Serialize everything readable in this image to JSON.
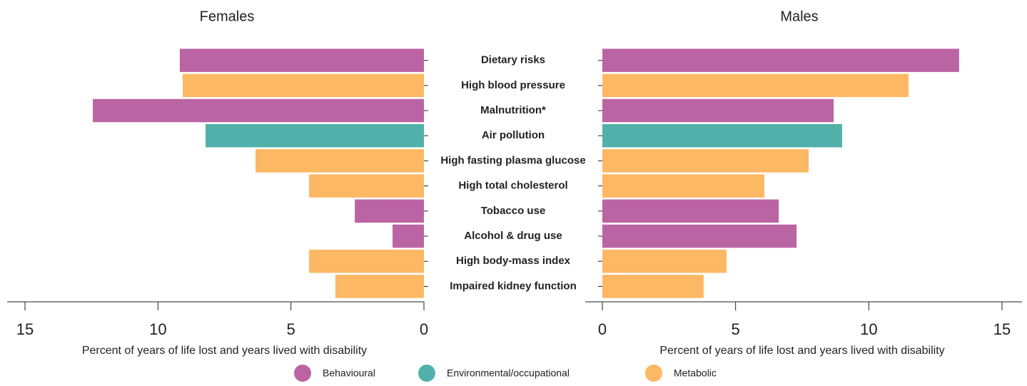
{
  "chart_data": {
    "type": "butterfly",
    "categories": [
      "Dietary risks",
      "High blood pressure",
      "Malnutrition*",
      "Air pollution",
      "High fasting plasma glucose",
      "High total cholesterol",
      "Tobacco use",
      "Alcohol & drug use",
      "High body-mass index",
      "Impaired kidney function"
    ],
    "bar_colors": [
      "#bb64a4",
      "#fdb863",
      "#bb64a4",
      "#52b0aa",
      "#fdb863",
      "#fdb863",
      "#bb64a4",
      "#bb64a4",
      "#fdb863",
      "#fdb863"
    ],
    "series": [
      {
        "name": "Females",
        "values": [
          9.18,
          9.07,
          12.45,
          8.21,
          6.33,
          4.32,
          2.6,
          1.18,
          4.32,
          3.33
        ],
        "xlim": [
          15,
          0
        ],
        "xticks": [
          15,
          10,
          5,
          0
        ],
        "xlabel": "Percent of years of life lost and years lived with disability"
      },
      {
        "name": "Males",
        "values": [
          13.39,
          11.49,
          8.68,
          9.0,
          7.74,
          6.08,
          6.62,
          7.29,
          4.66,
          3.8
        ],
        "xlim": [
          0,
          15
        ],
        "xticks": [
          0,
          5,
          10,
          15
        ],
        "xlabel": "Percent of years of life lost and years lived with disability"
      }
    ],
    "legend": [
      {
        "name": "Behavioural",
        "color": "#bb64a4"
      },
      {
        "name": "Environmental/occupational",
        "color": "#52b0aa"
      },
      {
        "name": "Metabolic",
        "color": "#fdb863"
      }
    ]
  }
}
